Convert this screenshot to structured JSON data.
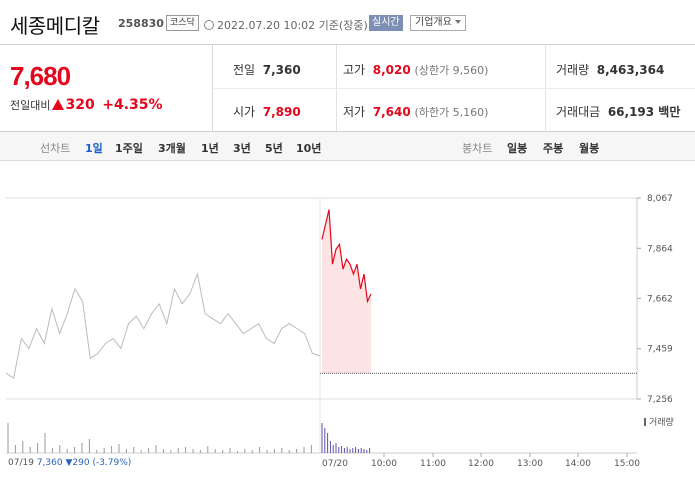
{
  "header": {
    "name": "세종메디칼",
    "code": "258830",
    "market": "코스닥",
    "timestamp": "2022.07.20 10:02 기준(장중)",
    "realtime": "실시간",
    "company_info": "기업개요"
  },
  "quote": {
    "price": "7,680",
    "change_label": "전일대비",
    "change": "320",
    "change_pct": "+4.35%",
    "prev_label": "전일",
    "prev": "7,360",
    "high_label": "고가",
    "high": "8,020",
    "upper_limit": "(상한가 9,560)",
    "volume_label": "거래량",
    "volume": "8,463,364",
    "open_label": "시가",
    "open": "7,890",
    "low_label": "저가",
    "low": "7,640",
    "lower_limit": "(하한가 5,160)",
    "amount_label": "거래대금",
    "amount": "66,193 백만"
  },
  "tabs": {
    "line_label": "선차트",
    "line_items": [
      "1일",
      "1주일",
      "3개월",
      "1년",
      "3년",
      "5년",
      "10년"
    ],
    "candle_label": "봉차트",
    "candle_items": [
      "일봉",
      "주봉",
      "월봉"
    ]
  },
  "chart_data": {
    "type": "line",
    "y_ticks": [
      "8,067",
      "7,864",
      "7,662",
      "7,459",
      "7,256"
    ],
    "ylim": [
      7256,
      8067
    ],
    "x_ticks": [
      "07/19",
      "07/20",
      "10:00",
      "11:00",
      "12:00",
      "13:00",
      "14:00",
      "15:00"
    ],
    "volume_label": "거래량",
    "prev_close": 7360,
    "series": [
      {
        "values": [
          7360,
          7340,
          7500,
          7460,
          7540,
          7480,
          7620,
          7520,
          7600,
          7700,
          7650,
          7420,
          7440,
          7480,
          7500,
          7460,
          7560,
          7590,
          7540,
          7600,
          7640,
          7560,
          7700,
          7640,
          7680,
          7760,
          7600,
          7580,
          7560,
          7600,
          7560,
          7520,
          7540,
          7560,
          7500,
          7480,
          7540,
          7560,
          7540,
          7520,
          7440,
          7430
        ]
      },
      {
        "values": [
          7900,
          7960,
          8020,
          7800,
          7860,
          7880,
          7780,
          7820,
          7800,
          7760,
          7800,
          7700,
          7760,
          7650,
          7680
        ]
      }
    ],
    "prev_day_info": "07/19",
    "prev_day_close": "7,360",
    "prev_day_change": "290",
    "prev_day_pct": "(-3.79%)"
  }
}
